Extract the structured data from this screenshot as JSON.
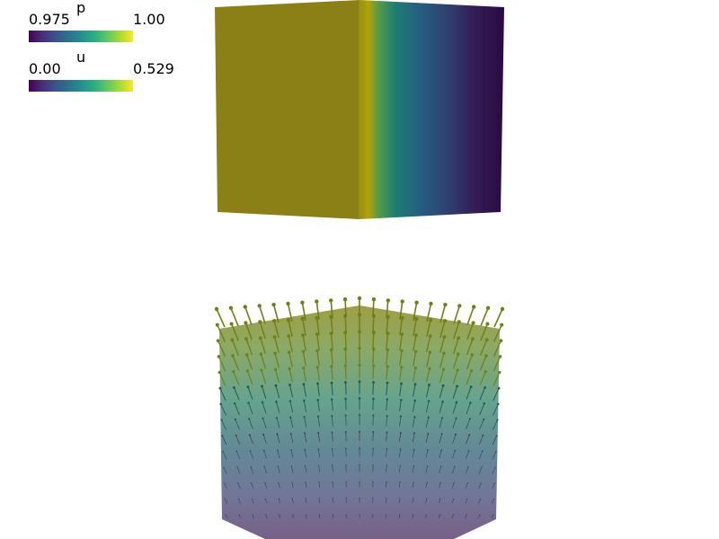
{
  "legends": {
    "p": {
      "title": "p",
      "min": "0.975",
      "max": "1.00"
    },
    "u": {
      "title": "u",
      "min": "0.00",
      "max": "0.529"
    }
  },
  "colormap": {
    "name": "viridis",
    "stops": [
      "#440154",
      "#472c7a",
      "#3b528b",
      "#2c728e",
      "#21908d",
      "#27ad81",
      "#5cc863",
      "#aadc32",
      "#fde725"
    ]
  },
  "colors": {
    "background": "#ffffff",
    "pressure_face_left": "#8b8015",
    "glyph_color_top": "#8b8b1a"
  }
}
